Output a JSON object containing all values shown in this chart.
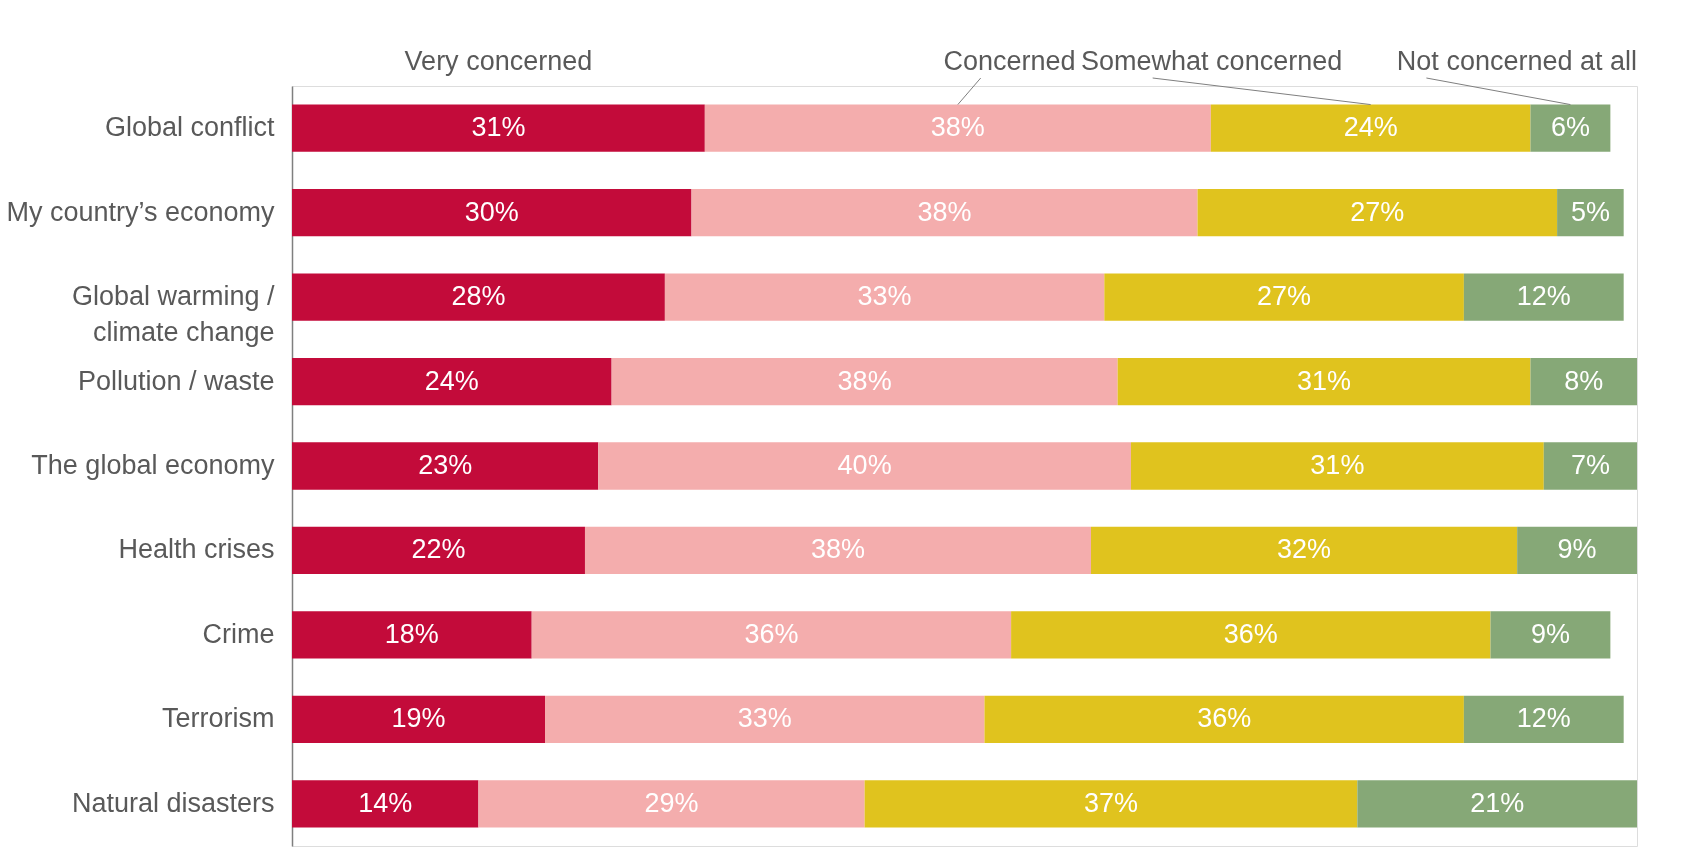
{
  "chart_data": {
    "type": "bar",
    "orientation": "horizontal",
    "stacked": true,
    "legend": "top",
    "categories": [
      "Global conflict",
      "My country’s economy",
      "Global warming / climate change",
      "Pollution / waste",
      "The global economy",
      "Health crises",
      "Crime",
      "Terrorism",
      "Natural disasters"
    ],
    "series": [
      {
        "name": "Very concerned",
        "color": "#c30b3a",
        "values": [
          31,
          30,
          28,
          24,
          23,
          22,
          18,
          19,
          14
        ],
        "value_labels": [
          "31%",
          "30%",
          "28%",
          "24%",
          "23%",
          "22%",
          "18%",
          "19%",
          "14%"
        ]
      },
      {
        "name": "Concerned",
        "color": "#f4adad",
        "values": [
          38,
          38,
          33,
          38,
          40,
          38,
          36,
          33,
          29
        ],
        "value_labels": [
          "38%",
          "38%",
          "33%",
          "38%",
          "40%",
          "38%",
          "36%",
          "33%",
          "29%"
        ]
      },
      {
        "name": "Somewhat concerned",
        "color": "#e0c31e",
        "values": [
          24,
          27,
          27,
          31,
          31,
          32,
          36,
          36,
          37
        ],
        "value_labels": [
          "24%",
          "27%",
          "27%",
          "31%",
          "31%",
          "32%",
          "36%",
          "36%",
          "37%"
        ]
      },
      {
        "name": "Not concerned at all",
        "color": "#86a877",
        "values": [
          6,
          5,
          12,
          8,
          7,
          9,
          9,
          12,
          21
        ],
        "value_labels": [
          "6%",
          "5%",
          "12%",
          "8%",
          "7%",
          "9%",
          "9%",
          "12%",
          "21%"
        ]
      }
    ]
  }
}
